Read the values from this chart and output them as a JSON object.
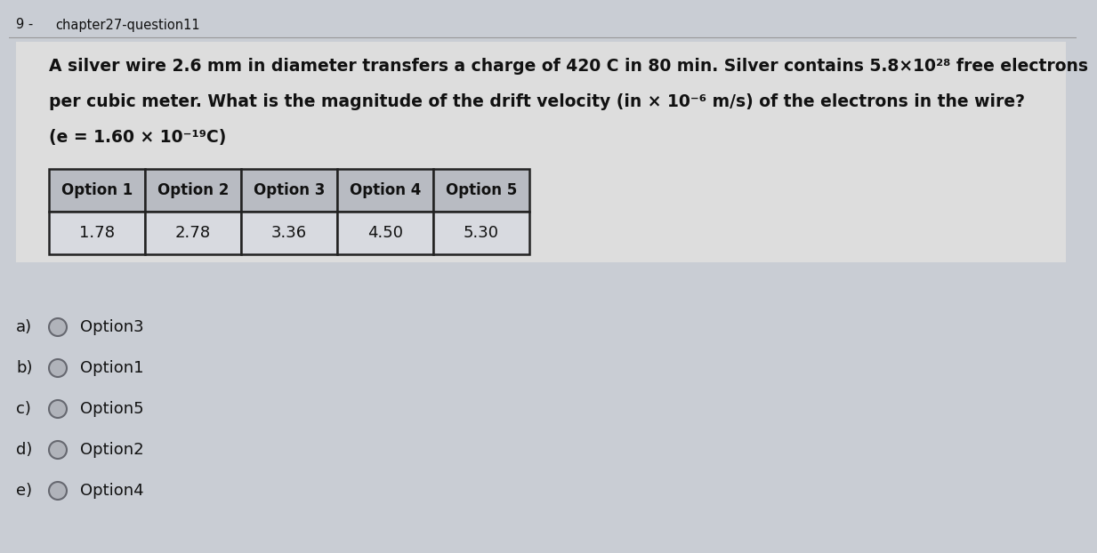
{
  "question_number": "9 -",
  "question_id": "chapter27-question11",
  "question_text_line1": "A silver wire 2.6 mm in diameter transfers a charge of 420 C in 80 min. Silver contains 5.8×10²⁸ free electrons",
  "question_text_line2": "per cubic meter. What is the magnitude of the drift velocity (in × 10⁻⁶ m/s) of the electrons in the wire?",
  "question_text_line3": "(e = 1.60 × 10⁻¹⁹C)",
  "table_headers": [
    "Option 1",
    "Option 2",
    "Option 3",
    "Option 4",
    "Option 5"
  ],
  "table_values": [
    "1.78",
    "2.78",
    "3.36",
    "4.50",
    "5.30"
  ],
  "answer_options": [
    {
      "label": "a)",
      "text": "Option3"
    },
    {
      "label": "b)",
      "text": "Option1"
    },
    {
      "label": "c)",
      "text": "Option5"
    },
    {
      "label": "d)",
      "text": "Option2"
    },
    {
      "label": "e)",
      "text": "Option4"
    }
  ],
  "bg_color": "#c9cdd4",
  "table_bg_light": "#d8dae0",
  "table_header_bg": "#b8bbc2",
  "text_color": "#111111",
  "border_color": "#222222",
  "radio_fill": "#b0b3ba",
  "radio_edge": "#666870",
  "line_color": "#999999",
  "header_sep_color": "#dddddd"
}
